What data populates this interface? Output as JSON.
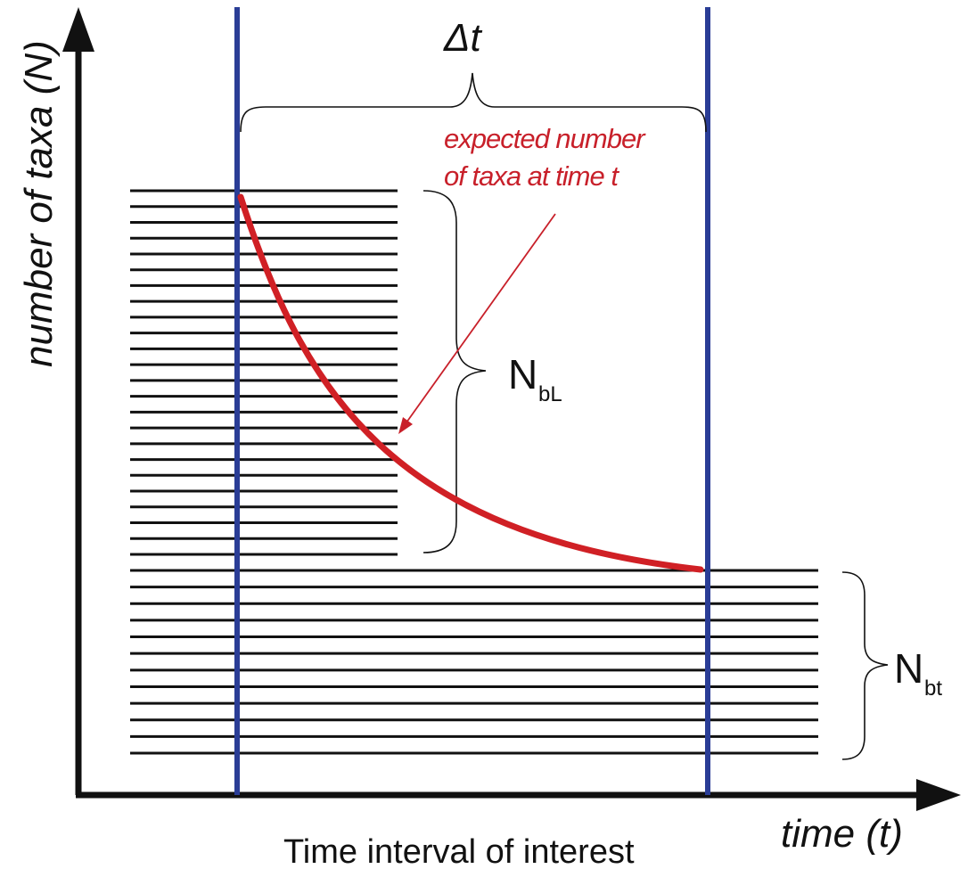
{
  "y_axis_label": "number of taxa (N)",
  "x_axis_label": "time (t)",
  "caption": "Time interval of interest",
  "interval_label": "Δt",
  "annotation": {
    "line1": "expected number",
    "line2": "of taxa at time t"
  },
  "bracket_upper": {
    "main": "N",
    "sub": "bL"
  },
  "bracket_lower": {
    "main": "N",
    "sub": "bt"
  },
  "colors": {
    "axis": "#111111",
    "interval_lines": "#2a3d96",
    "curve": "#d02025",
    "annotation": "#c8202a",
    "taxa_lines": "#111111"
  },
  "taxa_lines": {
    "upper_count": 24,
    "lower_count": 12
  }
}
